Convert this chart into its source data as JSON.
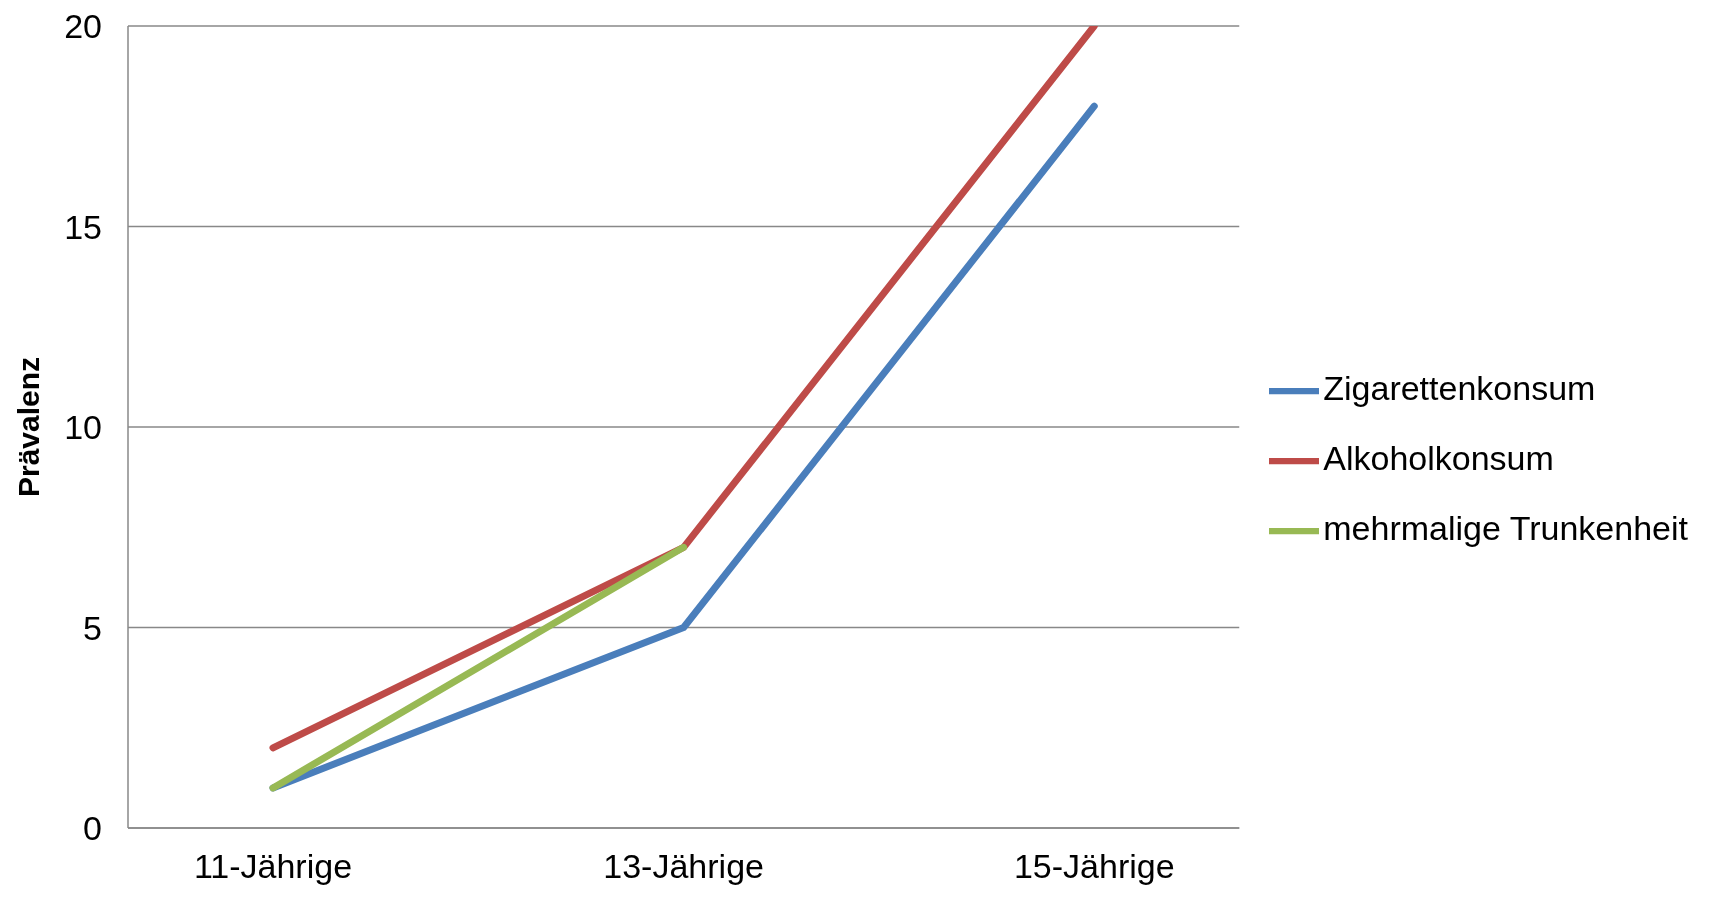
{
  "chart_data": {
    "type": "line",
    "ylabel": "Prävalenz",
    "categories": [
      "11-Jährige",
      "13-Jährige",
      "15-Jährige"
    ],
    "series": [
      {
        "name": "Zigarettenkonsum",
        "color": "#4a7ebb",
        "values": [
          1,
          5,
          18
        ]
      },
      {
        "name": "Alkoholkonsum",
        "color": "#be4b48",
        "values": [
          2,
          7,
          20
        ]
      },
      {
        "name": "mehrmalige Trunkenheit",
        "color": "#98b954",
        "values": [
          1,
          7,
          null
        ]
      }
    ],
    "ylim": [
      0,
      20
    ],
    "yticks": [
      0,
      5,
      10,
      15,
      20
    ],
    "grid": "y",
    "legend": "right",
    "marker": "none",
    "line_style": "solid"
  }
}
